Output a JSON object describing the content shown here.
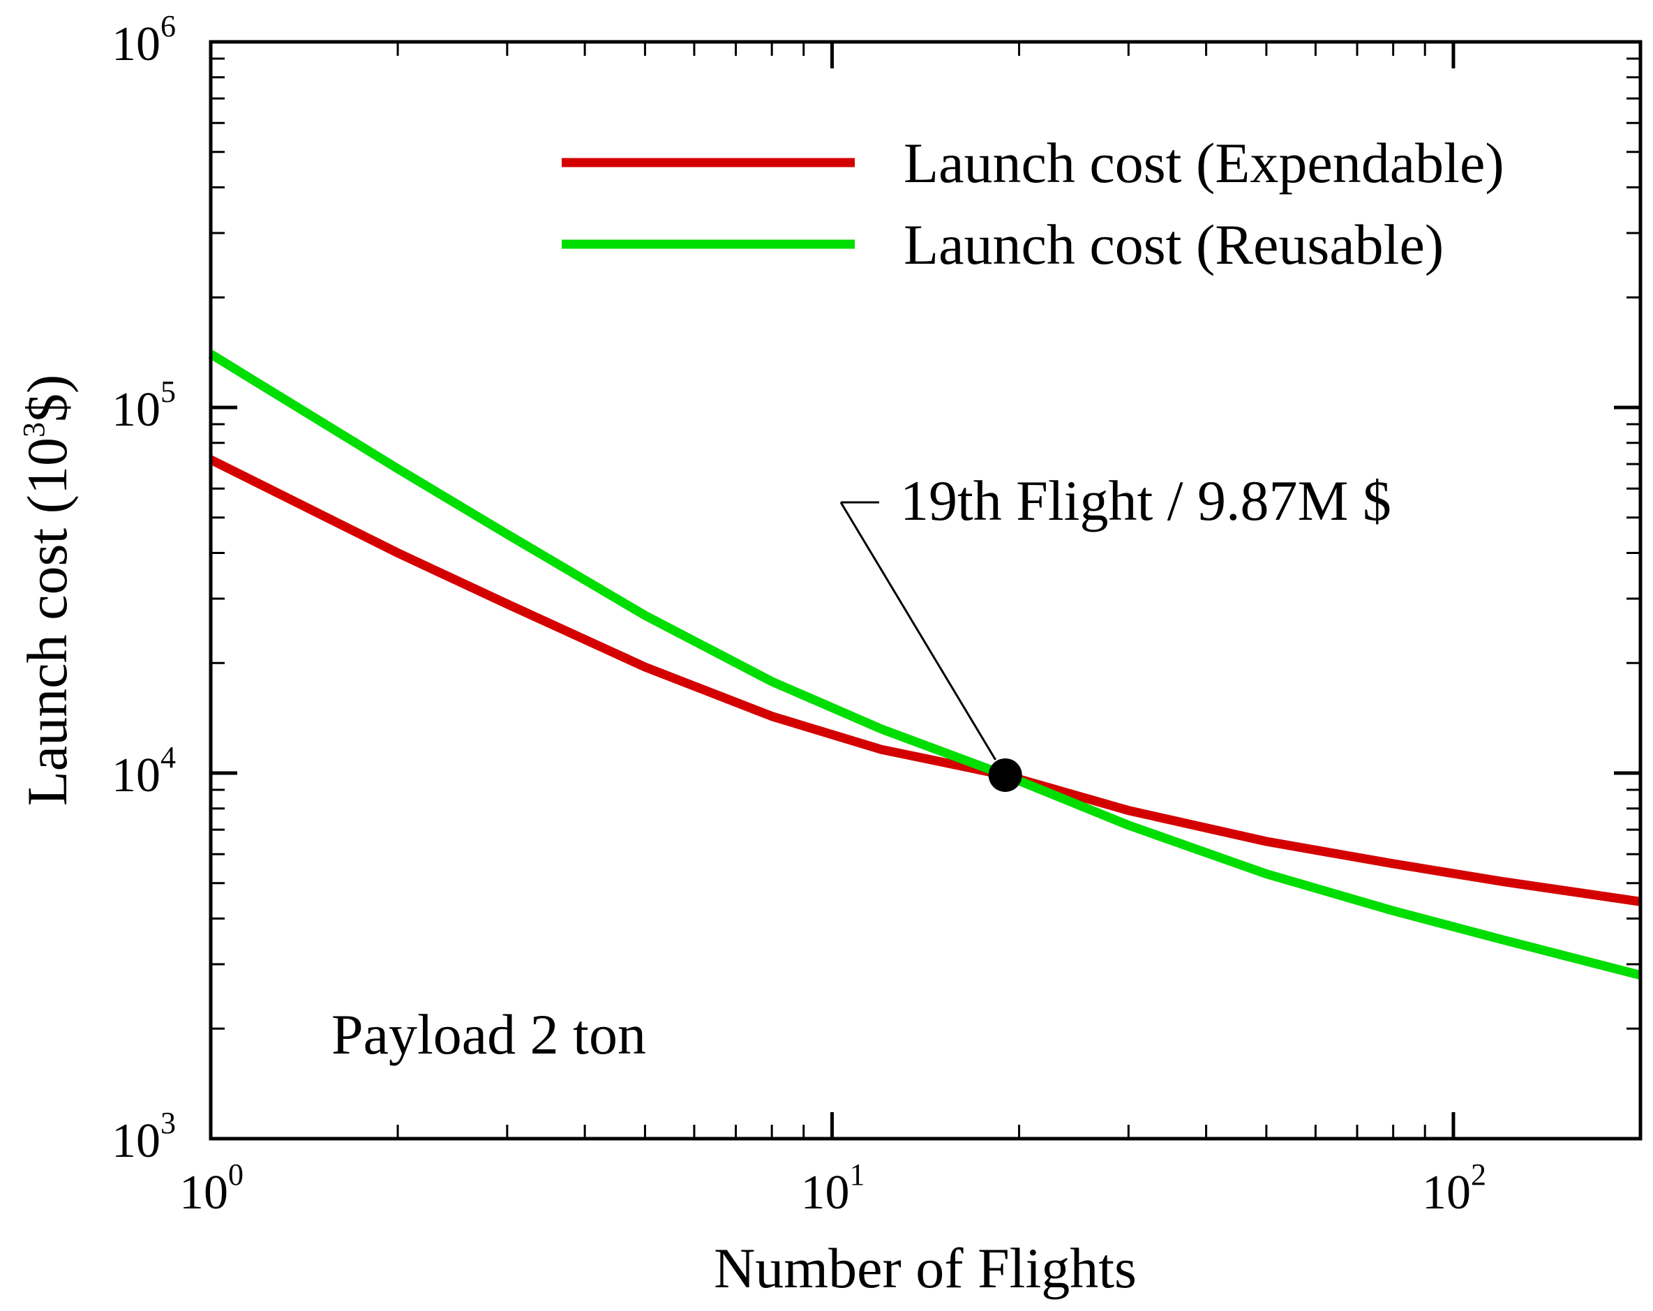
{
  "chart_data": {
    "type": "line",
    "title": "",
    "xlabel": "Number of Flights",
    "ylabel": {
      "prefix": "Launch cost (10",
      "sup": "3",
      "suffix": "$)"
    },
    "xscale": "log",
    "yscale": "log",
    "xlim": [
      1,
      200
    ],
    "ylim": [
      1000,
      1000000
    ],
    "x_ticks": [
      {
        "value": 1,
        "base": "10",
        "exp": "0"
      },
      {
        "value": 10,
        "base": "10",
        "exp": "1"
      },
      {
        "value": 100,
        "base": "10",
        "exp": "2"
      }
    ],
    "y_ticks": [
      {
        "value": 1000,
        "base": "10",
        "exp": "3"
      },
      {
        "value": 10000,
        "base": "10",
        "exp": "4"
      },
      {
        "value": 100000,
        "base": "10",
        "exp": "5"
      },
      {
        "value": 1000000,
        "base": "10",
        "exp": "6"
      }
    ],
    "series": [
      {
        "name": "Launch cost (Expendable)",
        "color": "#d40000",
        "x": [
          1,
          2,
          3,
          5,
          8,
          12,
          19,
          30,
          50,
          80,
          120,
          200
        ],
        "y": [
          72000,
          40000,
          29000,
          19500,
          14300,
          11600,
          9870,
          7900,
          6500,
          5650,
          5050,
          4450
        ]
      },
      {
        "name": "Launch cost (Reusable)",
        "color": "#00dd00",
        "x": [
          1,
          2,
          3,
          5,
          8,
          12,
          19,
          30,
          50,
          80,
          120,
          200
        ],
        "y": [
          140000,
          68000,
          45000,
          27000,
          17800,
          13200,
          9870,
          7200,
          5300,
          4200,
          3500,
          2800
        ]
      }
    ],
    "legend_position": "top-right",
    "annotations": [
      {
        "text": "19th Flight / 9.87M $",
        "x": 19,
        "y": 9870,
        "marker": "filled-circle",
        "color": "#000000"
      },
      {
        "text": "Payload 2 ton",
        "placement": "lower-left"
      }
    ]
  }
}
